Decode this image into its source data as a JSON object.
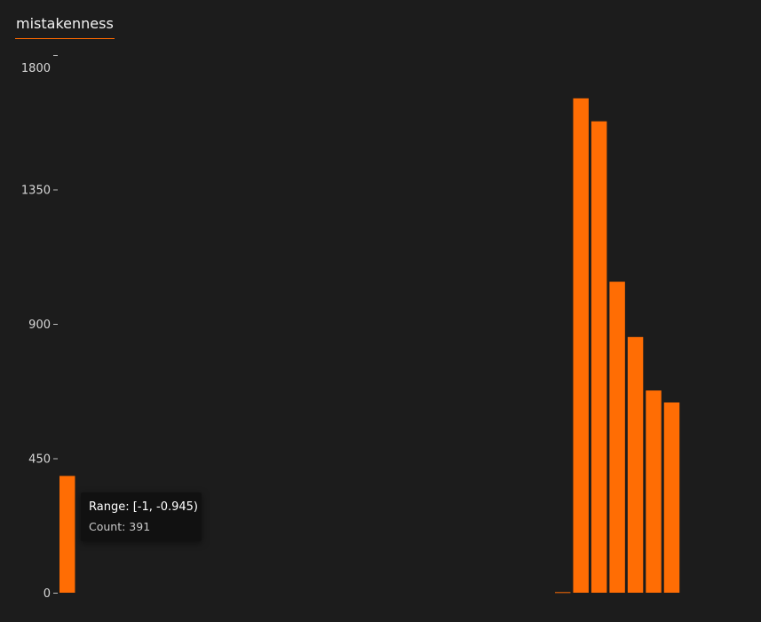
{
  "tabs": [
    {
      "label": "mistakenness",
      "active": true
    }
  ],
  "colors": {
    "background": "#1c1c1c",
    "bar": "#ff6d04",
    "accent": "#ff6a00",
    "text": "#d7d7d7"
  },
  "tooltip": {
    "range": "Range: [-1, -0.945)",
    "count": "Count: 391"
  },
  "chart_data": {
    "type": "bar",
    "title": "mistakenness",
    "xlabel": "",
    "ylabel": "",
    "ylim": [
      0,
      1800
    ],
    "yticks": [
      {
        "value": 0,
        "label": "0"
      },
      {
        "value": 450,
        "label": "450"
      },
      {
        "value": 900,
        "label": "900"
      },
      {
        "value": 1350,
        "label": "1350"
      },
      {
        "value": 1800,
        "label": "1800"
      }
    ],
    "xlim": [
      -1,
      1
    ],
    "bin_width": 0.055,
    "bins": [
      {
        "start": -1.0,
        "end": -0.945,
        "count": 391
      },
      {
        "start": 0.5,
        "end": 0.555,
        "count": 2
      },
      {
        "start": 0.555,
        "end": 0.61,
        "count": 1655
      },
      {
        "start": 0.61,
        "end": 0.665,
        "count": 1578
      },
      {
        "start": 0.665,
        "end": 0.72,
        "count": 1041
      },
      {
        "start": 0.72,
        "end": 0.775,
        "count": 856
      },
      {
        "start": 0.775,
        "end": 0.83,
        "count": 677
      },
      {
        "start": 0.83,
        "end": 0.885,
        "count": 637
      }
    ]
  }
}
